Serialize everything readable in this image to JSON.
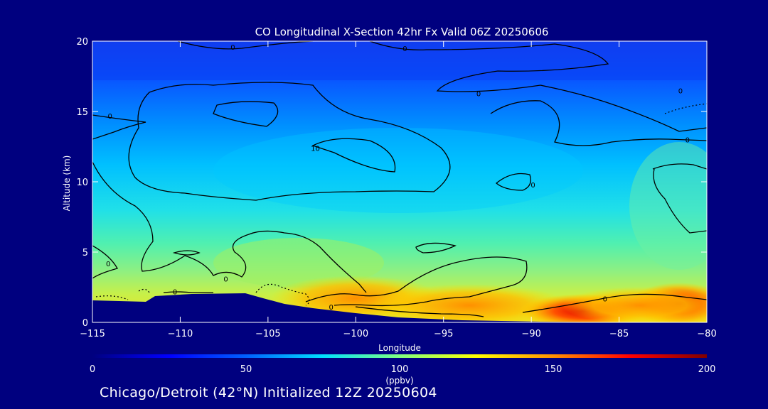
{
  "chart_data": {
    "type": "heatmap",
    "title": "CO Longitudinal X-Section 42hr  Fx Valid 06Z 20250606",
    "xlabel": "Longitude",
    "ylabel": "Altitude (km)",
    "xlim": [
      -115,
      -80
    ],
    "ylim": [
      0,
      20
    ],
    "x_ticks": [
      -115,
      -110,
      -105,
      -100,
      -95,
      -90,
      -85,
      -80
    ],
    "x_tick_labels": [
      "−115",
      "−110",
      "−105",
      "−100",
      "−95",
      "−90",
      "−85",
      "−80"
    ],
    "y_ticks": [
      0,
      5,
      10,
      15,
      20
    ],
    "y_tick_labels": [
      "0",
      "5",
      "10",
      "15",
      "20"
    ],
    "colorbar": {
      "label": "(ppbv)",
      "range": [
        0,
        200
      ],
      "ticks": [
        0,
        50,
        100,
        150,
        200
      ],
      "tick_labels": [
        "0",
        "50",
        "100",
        "150",
        "200"
      ]
    },
    "contour_labels": [
      {
        "text": "0",
        "lon": -107,
        "alt": 19.6
      },
      {
        "text": "0",
        "lon": -97.2,
        "alt": 19.5
      },
      {
        "text": "0",
        "lon": -114,
        "alt": 14.7
      },
      {
        "text": "0",
        "lon": -93,
        "alt": 16.3
      },
      {
        "text": "0",
        "lon": -81.5,
        "alt": 16.5
      },
      {
        "text": "0",
        "lon": -81.1,
        "alt": 13.0
      },
      {
        "text": "10",
        "lon": -102.3,
        "alt": 12.4
      },
      {
        "text": "0",
        "lon": -89.9,
        "alt": 9.8
      },
      {
        "text": "0",
        "lon": -114.1,
        "alt": 4.2
      },
      {
        "text": "0",
        "lon": -110.3,
        "alt": 2.2
      },
      {
        "text": "0",
        "lon": -107.4,
        "alt": 3.1
      },
      {
        "text": "0",
        "lon": -85.8,
        "alt": 1.7
      },
      {
        "text": "0",
        "lon": -101.4,
        "alt": 1.1
      }
    ],
    "colors": [
      "#00007f",
      "#0000ff",
      "#0080ff",
      "#00ffff",
      "#80ff80",
      "#ffff00",
      "#ff8000",
      "#ff0000",
      "#7f0000"
    ]
  },
  "footer": "Chicago/Detroit (42°N) Initialized 12Z 20250604"
}
